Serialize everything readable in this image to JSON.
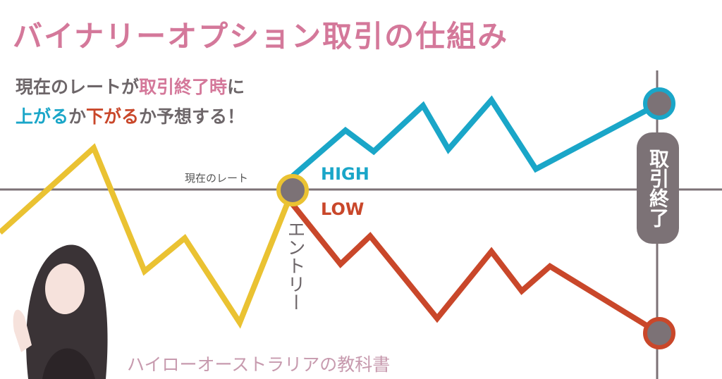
{
  "header": {
    "title": "バイナリーオプション取引の仕組み"
  },
  "description": {
    "line1": [
      "現在のレートが",
      "取引終了時",
      "に"
    ],
    "line2": [
      "上がる",
      "か",
      "下がる",
      "か予想する！"
    ]
  },
  "labels": {
    "current_rate": "現在のレート",
    "high": "HIGH",
    "low": "LOW",
    "entry": "エントリー",
    "expiry": "取引終了"
  },
  "footer": {
    "brand": "ハイローオーストラリアの教科書"
  }
}
